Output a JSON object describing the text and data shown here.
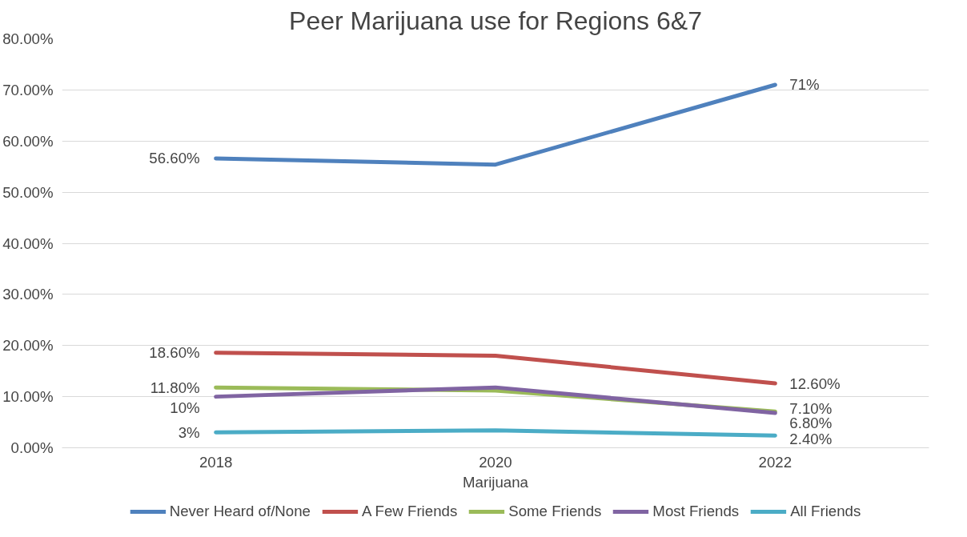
{
  "chart_data": {
    "type": "line",
    "title": "Peer Marijuana use for Regions 6&7",
    "xlabel": "Marijuana",
    "categories": [
      "2018",
      "2020",
      "2022"
    ],
    "series": [
      {
        "name": "Never Heard of/None",
        "color": "#4f81bd",
        "values": [
          56.6,
          55.4,
          71
        ],
        "value_labels": [
          "56.60%",
          null,
          "71%"
        ]
      },
      {
        "name": "A Few Friends",
        "color": "#c0504d",
        "values": [
          18.6,
          18.0,
          12.6
        ],
        "value_labels": [
          "18.60%",
          null,
          "12.60%"
        ]
      },
      {
        "name": "Some Friends",
        "color": "#9bbb59",
        "values": [
          11.8,
          11.2,
          7.1
        ],
        "value_labels": [
          "11.80%",
          null,
          "7.10%"
        ]
      },
      {
        "name": "Most Friends",
        "color": "#8064a2",
        "values": [
          10,
          11.8,
          6.8
        ],
        "value_labels": [
          "10%",
          null,
          "6.80%"
        ]
      },
      {
        "name": "All Friends",
        "color": "#4bacc6",
        "values": [
          3,
          3.4,
          2.4
        ],
        "value_labels": [
          "3%",
          null,
          "2.40%"
        ]
      }
    ],
    "ylim": [
      0,
      80
    ],
    "yticks": [
      {
        "value": 0,
        "label": "0.00%"
      },
      {
        "value": 10,
        "label": "10.00%"
      },
      {
        "value": 20,
        "label": "20.00%"
      },
      {
        "value": 30,
        "label": "30.00%"
      },
      {
        "value": 40,
        "label": "40.00%"
      },
      {
        "value": 50,
        "label": "50.00%"
      },
      {
        "value": 60,
        "label": "60.00%"
      },
      {
        "value": 70,
        "label": "70.00%"
      },
      {
        "value": 80,
        "label": "80.00%"
      }
    ],
    "grid": "y",
    "legend": "bottom",
    "marker": "none",
    "line_style": "solid"
  }
}
